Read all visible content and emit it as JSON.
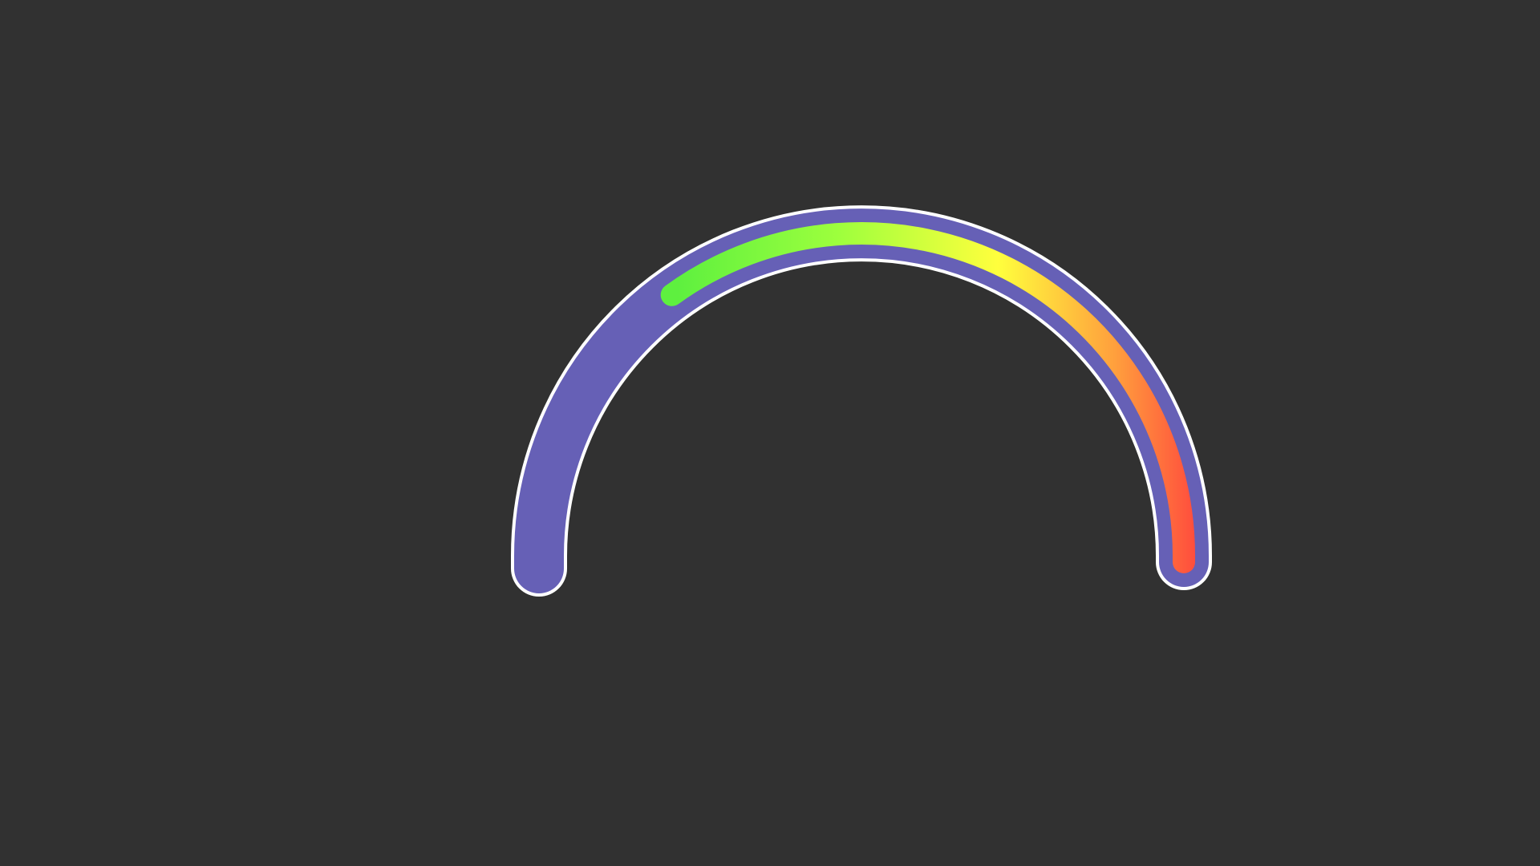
{
  "gauge": {
    "value": 0.7,
    "colors": {
      "background": "#313131",
      "track": "#6660b6",
      "outline": "#ffffff",
      "gradient": [
        "#5ef03f",
        "#9dff3d",
        "#ffff3d",
        "#ff9f3d",
        "#ff3d3d"
      ]
    }
  }
}
